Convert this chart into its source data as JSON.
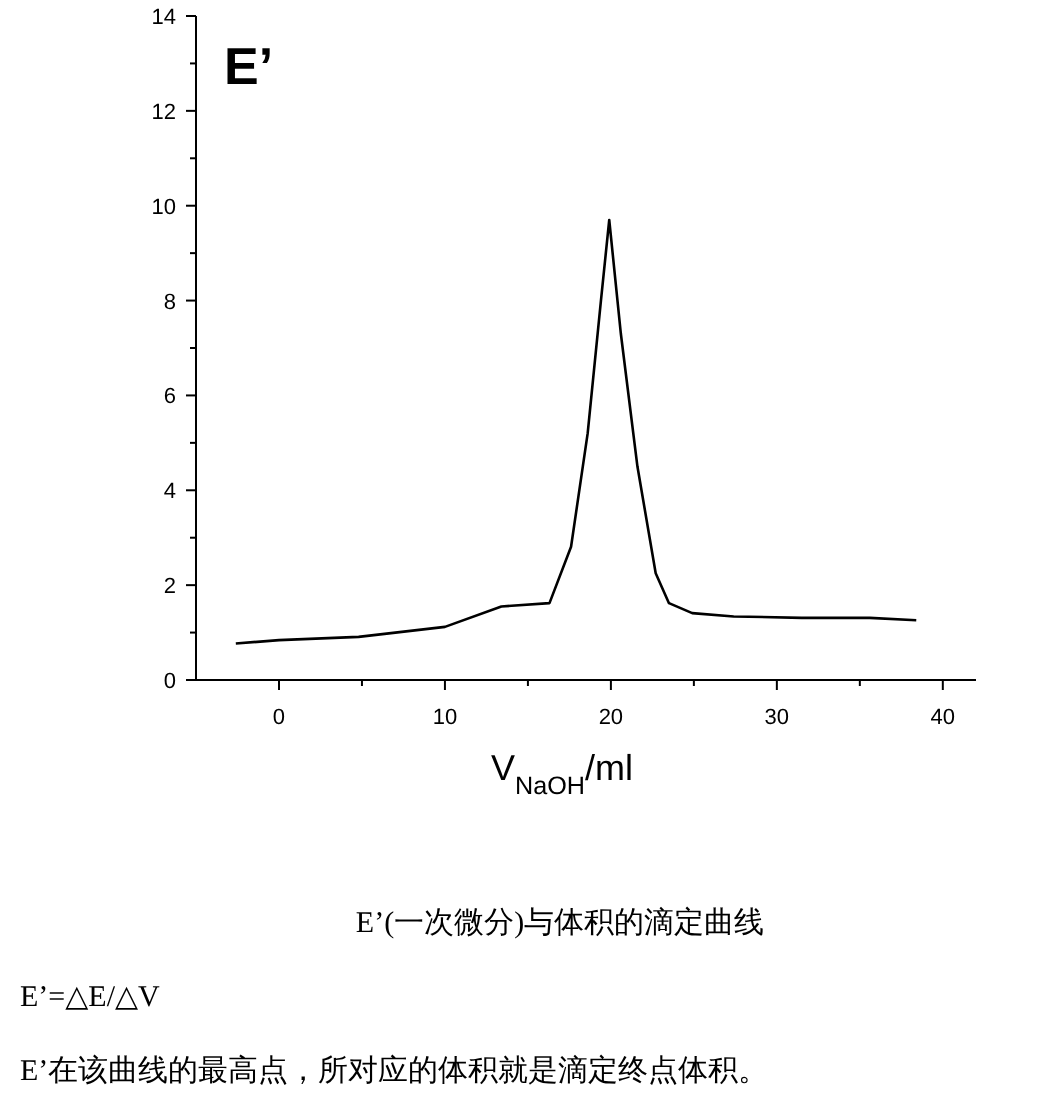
{
  "chart_data": {
    "type": "line",
    "title": "E’",
    "xlabel": "V$_{NaOH}$/ml",
    "color": "#000000",
    "x": [
      -2.6,
      0,
      4.8,
      10.0,
      13.4,
      16.3,
      17.6,
      18.6,
      19.4,
      19.9,
      20.6,
      21.6,
      22.7,
      23.5,
      24.9,
      27.4,
      31.5,
      35.6,
      38.4
    ],
    "values": [
      0.77,
      0.84,
      0.91,
      1.12,
      1.55,
      1.62,
      2.81,
      5.2,
      8.0,
      9.7,
      7.3,
      4.5,
      2.25,
      1.62,
      1.41,
      1.34,
      1.31,
      1.31,
      1.26
    ],
    "xlim": [
      -5,
      42
    ],
    "ylim": [
      0,
      14
    ],
    "xticks": [
      0,
      {
        "value": 5,
        "label": null
      },
      10,
      {
        "value": 15,
        "label": null
      },
      20,
      {
        "value": 25,
        "label": null
      },
      30,
      {
        "value": 35,
        "label": null
      },
      40
    ],
    "yticks": [
      0,
      {
        "value": 1,
        "label": null
      },
      2,
      {
        "value": 3,
        "label": null
      },
      4,
      {
        "value": 5,
        "label": null
      },
      6,
      {
        "value": 7,
        "label": null
      },
      8,
      {
        "value": 9,
        "label": null
      },
      10,
      {
        "value": 11,
        "label": null
      },
      12,
      {
        "value": 13,
        "label": null
      },
      14
    ],
    "annotations": [
      "E’(一次微分)与体积的滴定曲线",
      "E’=△E/△V",
      "E’在该曲线的最高点，所对应的体积就是滴定终点体积。"
    ]
  }
}
